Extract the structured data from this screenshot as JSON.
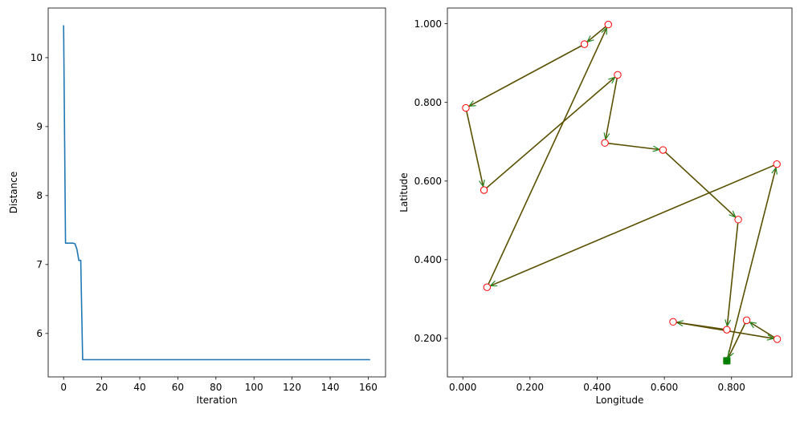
{
  "chart_data": [
    {
      "type": "line",
      "xlabel": "Iteration",
      "ylabel": "Distance",
      "xlim": [
        -8.1,
        169.1
      ],
      "ylim": [
        5.37,
        10.72
      ],
      "xticks": [
        0,
        20,
        40,
        60,
        80,
        100,
        120,
        140,
        160
      ],
      "xtick_labels": [
        "0",
        "20",
        "40",
        "60",
        "80",
        "100",
        "120",
        "140",
        "160"
      ],
      "yticks": [
        6,
        7,
        8,
        9,
        10
      ],
      "ytick_labels": [
        "6",
        "7",
        "8",
        "9",
        "10"
      ],
      "grid": false,
      "line_color": "#1f77b4",
      "series": [
        {
          "x": [
            0,
            1,
            2,
            3,
            4,
            5,
            6,
            7,
            8,
            9,
            10,
            11,
            161
          ],
          "y": [
            10.47,
            7.31,
            7.31,
            7.31,
            7.31,
            7.31,
            7.3,
            7.22,
            7.06,
            7.06,
            5.62,
            5.62,
            5.62
          ]
        }
      ]
    },
    {
      "type": "scatter",
      "xlabel": "Longitude",
      "ylabel": "Latitude",
      "xlim": [
        -0.046,
        0.98
      ],
      "ylim": [
        0.102,
        1.04
      ],
      "xticks": [
        0,
        0.2,
        0.4,
        0.6,
        0.8
      ],
      "xtick_labels": [
        "0.000",
        "0.200",
        "0.400",
        "0.600",
        "0.800"
      ],
      "yticks": [
        0.2,
        0.4,
        0.6,
        0.8,
        1.0
      ],
      "ytick_labels": [
        "0.200",
        "0.400",
        "0.600",
        "0.800",
        "1.000"
      ],
      "grid": false,
      "point_edge_color": "#ff0000",
      "point_face_color": "#ffffff",
      "arrow_color": "#5a5000",
      "arrow_head_color": "#228b22",
      "start_marker_color": "#008000",
      "points": [
        {
          "x": 0.786,
          "y": 0.143
        },
        {
          "x": 0.935,
          "y": 0.643
        },
        {
          "x": 0.072,
          "y": 0.33
        },
        {
          "x": 0.433,
          "y": 0.998
        },
        {
          "x": 0.362,
          "y": 0.948
        },
        {
          "x": 0.009,
          "y": 0.786
        },
        {
          "x": 0.063,
          "y": 0.577
        },
        {
          "x": 0.461,
          "y": 0.87
        },
        {
          "x": 0.423,
          "y": 0.697
        },
        {
          "x": 0.596,
          "y": 0.679
        },
        {
          "x": 0.82,
          "y": 0.502
        },
        {
          "x": 0.786,
          "y": 0.222
        },
        {
          "x": 0.626,
          "y": 0.242
        },
        {
          "x": 0.936,
          "y": 0.198
        },
        {
          "x": 0.845,
          "y": 0.246
        }
      ],
      "tour_order": [
        0,
        1,
        2,
        3,
        4,
        5,
        6,
        7,
        8,
        9,
        10,
        11,
        12,
        13,
        14,
        0
      ]
    }
  ]
}
